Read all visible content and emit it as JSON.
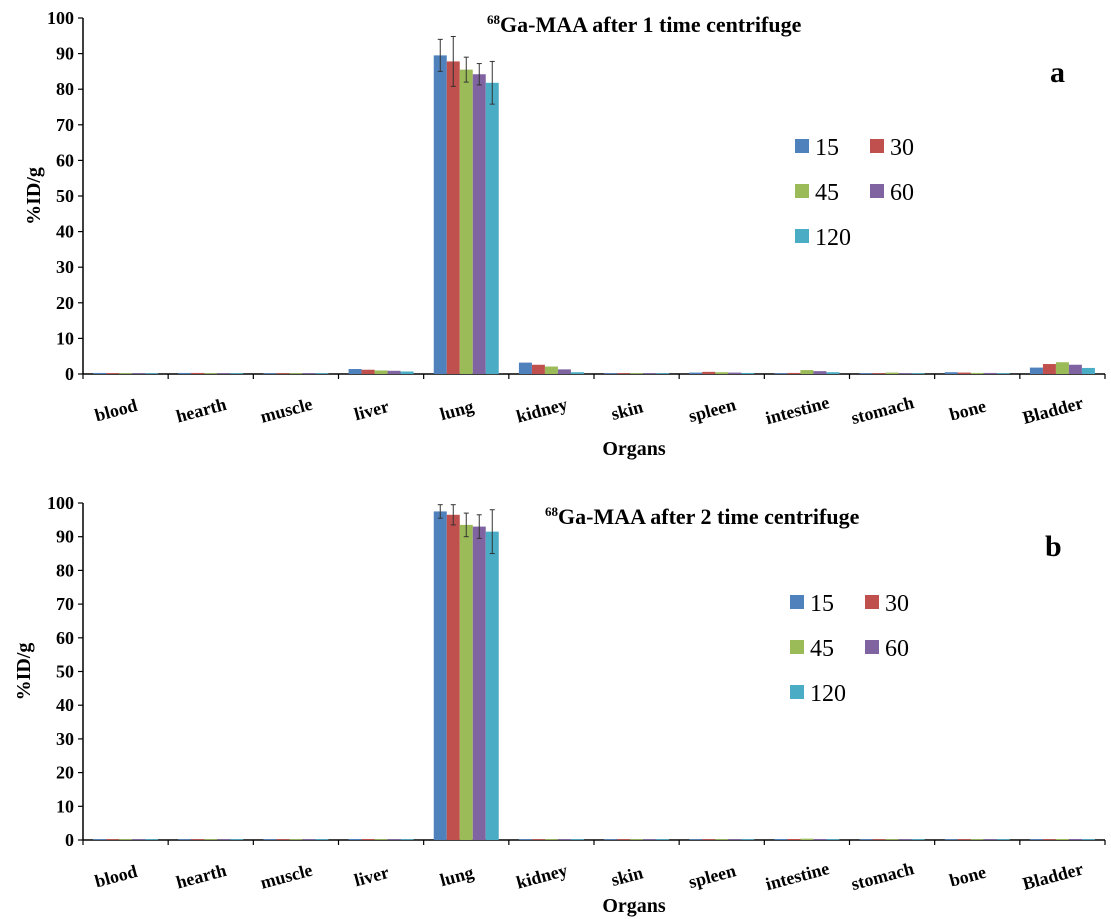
{
  "chart_data": [
    {
      "type": "bar",
      "panel_letter": "a",
      "title_sup": "68",
      "title_main": "Ga-MAA after 1 time centrifuge",
      "xlabel": "Organs",
      "ylabel": "%ID/g",
      "ylim": [
        0,
        100
      ],
      "yticks": [
        "0",
        "10",
        "20",
        "30",
        "40",
        "50",
        "60",
        "70",
        "80",
        "90",
        "100"
      ],
      "grid": false,
      "legend_position": "right",
      "categories": [
        "blood",
        "hearth",
        "muscle",
        "liver",
        "lung",
        "kidney",
        "skin",
        "spleen",
        "intestine",
        "stomach",
        "bone",
        "Bladder"
      ],
      "series": [
        {
          "name": "15",
          "color": "#4F81BD",
          "values": [
            0.3,
            0.3,
            0.1,
            1.4,
            89.5,
            3.2,
            0.05,
            0.4,
            0.2,
            0.1,
            0.5,
            1.8
          ],
          "errors": [
            0,
            0,
            0,
            0,
            4.5,
            0,
            0,
            0,
            0,
            0,
            0,
            0
          ]
        },
        {
          "name": "30",
          "color": "#C0504D",
          "values": [
            0.2,
            0.3,
            0.1,
            1.2,
            87.8,
            2.6,
            0.05,
            0.6,
            0.3,
            0.1,
            0.4,
            2.8
          ],
          "errors": [
            0,
            0,
            0,
            0,
            7.0,
            0,
            0,
            0,
            0,
            0,
            0,
            0
          ]
        },
        {
          "name": "45",
          "color": "#9BBB59",
          "values": [
            0.2,
            0.2,
            0.1,
            1.0,
            85.5,
            2.1,
            0.05,
            0.5,
            1.1,
            0.4,
            0.3,
            3.3
          ],
          "errors": [
            0,
            0,
            0,
            0,
            3.5,
            0,
            0,
            0,
            0,
            0,
            0,
            0
          ]
        },
        {
          "name": "60",
          "color": "#8064A2",
          "values": [
            0.1,
            0.2,
            0.1,
            0.9,
            84.2,
            1.3,
            0.05,
            0.4,
            0.8,
            0.2,
            0.3,
            2.6
          ],
          "errors": [
            0,
            0,
            0,
            0,
            3.0,
            0,
            0,
            0,
            0,
            0,
            0,
            0
          ]
        },
        {
          "name": "120",
          "color": "#4BACC6",
          "values": [
            0.1,
            0.1,
            0.05,
            0.7,
            81.8,
            0.5,
            0.05,
            0.3,
            0.5,
            0.1,
            0.2,
            1.7
          ],
          "errors": [
            0,
            0,
            0,
            0,
            6.0,
            0,
            0,
            0,
            0,
            0,
            0,
            0
          ]
        }
      ]
    },
    {
      "type": "bar",
      "panel_letter": "b",
      "title_sup": "68",
      "title_main": "Ga-MAA after 2 time centrifuge",
      "xlabel": "Organs",
      "ylabel": "%ID/g",
      "ylim": [
        0,
        100
      ],
      "yticks": [
        "0",
        "10",
        "20",
        "30",
        "40",
        "50",
        "60",
        "70",
        "80",
        "90",
        "100"
      ],
      "grid": false,
      "legend_position": "right",
      "categories": [
        "blood",
        "hearth",
        "muscle",
        "liver",
        "lung",
        "kidney",
        "skin",
        "spleen",
        "intestine",
        "stomach",
        "bone",
        "Bladder"
      ],
      "series": [
        {
          "name": "15",
          "color": "#4F81BD",
          "values": [
            0.05,
            0.05,
            0.05,
            0.3,
            97.5,
            0.2,
            0.05,
            0.2,
            0.3,
            0.1,
            0.05,
            0.2
          ],
          "errors": [
            0,
            0,
            0,
            0,
            2.0,
            0,
            0,
            0,
            0,
            0,
            0,
            0
          ]
        },
        {
          "name": "30",
          "color": "#C0504D",
          "values": [
            0.05,
            0.05,
            0.05,
            0.3,
            96.5,
            0.2,
            0.05,
            0.2,
            0.3,
            0.1,
            0.05,
            0.2
          ],
          "errors": [
            0,
            0,
            0,
            0,
            3.0,
            0,
            0,
            0,
            0,
            0,
            0,
            0
          ]
        },
        {
          "name": "45",
          "color": "#9BBB59",
          "values": [
            0.05,
            0.05,
            0.05,
            0.2,
            93.5,
            0.2,
            0.05,
            0.2,
            0.4,
            0.1,
            0.05,
            0.3
          ],
          "errors": [
            0,
            0,
            0,
            0,
            3.5,
            0,
            0,
            0,
            0,
            0,
            0,
            0
          ]
        },
        {
          "name": "60",
          "color": "#8064A2",
          "values": [
            0.05,
            0.05,
            0.05,
            0.2,
            93.0,
            0.1,
            0.05,
            0.2,
            0.3,
            0.1,
            0.05,
            0.3
          ],
          "errors": [
            0,
            0,
            0,
            0,
            3.5,
            0,
            0,
            0,
            0,
            0,
            0,
            0
          ]
        },
        {
          "name": "120",
          "color": "#4BACC6",
          "values": [
            0.05,
            0.05,
            0.05,
            0.2,
            91.5,
            0.1,
            0.05,
            0.1,
            0.2,
            0.1,
            0.05,
            0.2
          ],
          "errors": [
            0,
            0,
            0,
            0,
            6.5,
            0,
            0,
            0,
            0,
            0,
            0,
            0
          ]
        }
      ]
    }
  ]
}
